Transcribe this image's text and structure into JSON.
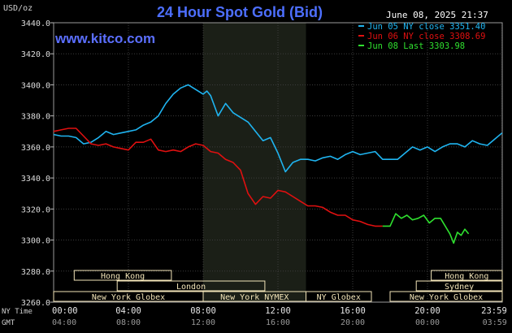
{
  "header": {
    "title": "24 Hour Spot Gold (Bid)",
    "unit": "USD/oz",
    "datetime": "June 08, 2025 21:37",
    "site": "www.kitco.com"
  },
  "colors": {
    "background": "#000000",
    "title": "#4d6fff",
    "jun05": "#1fb4f0",
    "jun06": "#e01010",
    "jun08": "#2fe02f",
    "market_label_bg": "#f2e4b8",
    "nymex_shade": "#1b1f17"
  },
  "chart_data": {
    "type": "line",
    "title": "24 Hour Spot Gold (Bid)",
    "ylabel": "USD/oz",
    "ylim": [
      3260,
      3440
    ],
    "yticks": [
      "3440.0",
      "3420.0",
      "3400.0",
      "3380.0",
      "3360.0",
      "3340.0",
      "3320.0",
      "3300.0",
      "3280.0",
      "3260.0"
    ],
    "xlim": [
      0,
      24
    ],
    "grid": true,
    "legend_position": "top-right",
    "x_rows": [
      {
        "label": "NY Time",
        "ticks": [
          "00:00",
          "04:00",
          "08:00",
          "12:00",
          "16:00",
          "20:00",
          "23:59"
        ]
      },
      {
        "label": "GMT",
        "ticks": [
          "04:00",
          "08:00",
          "12:00",
          "16:00",
          "20:00",
          "00:00",
          "03:59"
        ]
      }
    ],
    "series": [
      {
        "name": "Jun 05 NY close 3351.40",
        "key": "jun05",
        "x": [
          0,
          0.4,
          0.8,
          1.2,
          1.6,
          2.0,
          2.4,
          2.8,
          3.2,
          3.6,
          4.0,
          4.4,
          4.8,
          5.2,
          5.6,
          6.0,
          6.4,
          6.8,
          7.2,
          7.6,
          8.0,
          8.2,
          8.4,
          8.8,
          9.2,
          9.6,
          10.0,
          10.4,
          10.8,
          11.2,
          11.6,
          12.0,
          12.4,
          12.8,
          13.2,
          13.6,
          14.0,
          14.4,
          14.8,
          15.2,
          15.6,
          16.0,
          16.4,
          16.8,
          17.2,
          17.6,
          18.0,
          18.4,
          18.8,
          19.2,
          19.6,
          20.0,
          20.4,
          20.8,
          21.2,
          21.6,
          22.0,
          22.4,
          22.8,
          23.2,
          23.6,
          23.99
        ],
        "y": [
          3368,
          3367,
          3367,
          3366,
          3362,
          3363,
          3366,
          3370,
          3368,
          3369,
          3370,
          3371,
          3374,
          3376,
          3380,
          3388,
          3394,
          3398,
          3400,
          3397,
          3394,
          3396,
          3393,
          3380,
          3388,
          3382,
          3379,
          3376,
          3370,
          3364,
          3366,
          3356,
          3344,
          3350,
          3352,
          3352,
          3351,
          3353,
          3354,
          3352,
          3355,
          3357,
          3355,
          3356,
          3357,
          3352,
          3352,
          3352,
          3356,
          3360,
          3358,
          3360,
          3357,
          3360,
          3362,
          3362,
          3360,
          3364,
          3362,
          3361,
          3365,
          3369
        ]
      },
      {
        "name": "Jun 06 NY close 3308.69",
        "key": "jun06",
        "x": [
          0,
          0.4,
          0.8,
          1.2,
          1.6,
          2.0,
          2.4,
          2.8,
          3.2,
          3.6,
          4.0,
          4.4,
          4.8,
          5.2,
          5.6,
          6.0,
          6.4,
          6.8,
          7.2,
          7.6,
          8.0,
          8.4,
          8.8,
          9.2,
          9.6,
          10.0,
          10.4,
          10.8,
          11.2,
          11.6,
          12.0,
          12.4,
          12.8,
          13.2,
          13.6,
          14.0,
          14.4,
          14.8,
          15.2,
          15.6,
          16.0,
          16.4,
          16.8,
          17.2,
          17.6
        ],
        "y": [
          3370,
          3371,
          3372,
          3372,
          3367,
          3362,
          3361,
          3362,
          3360,
          3359,
          3358,
          3363,
          3363,
          3365,
          3358,
          3357,
          3358,
          3357,
          3360,
          3362,
          3361,
          3357,
          3356,
          3352,
          3350,
          3345,
          3330,
          3323,
          3328,
          3327,
          3332,
          3331,
          3328,
          3325,
          3322,
          3322,
          3321,
          3318,
          3316,
          3316,
          3313,
          3312,
          3310,
          3309,
          3309
        ]
      },
      {
        "name": "Jun 08 Last 3303.98",
        "key": "jun08",
        "x": [
          17.6,
          18.0,
          18.3,
          18.6,
          18.9,
          19.2,
          19.5,
          19.8,
          20.1,
          20.4,
          20.7,
          21.0,
          21.2,
          21.4,
          21.6,
          21.8,
          22.0,
          22.2
        ],
        "y": [
          3309,
          3309,
          3317,
          3314,
          3316,
          3313,
          3314,
          3316,
          3311,
          3314,
          3314,
          3308,
          3304,
          3298,
          3305,
          3303,
          3307,
          3304
        ]
      }
    ],
    "shaded_region": {
      "label": "New York NYMEX",
      "x_start": 8.0,
      "x_end": 13.5
    },
    "market_sessions": [
      {
        "label": "Hong Kong",
        "x_start": 1.1,
        "x_end": 6.3,
        "row": 0
      },
      {
        "label": "London",
        "x_start": 3.4,
        "x_end": 11.3,
        "row": 1
      },
      {
        "label": "New York Globex",
        "x_start": 0.0,
        "x_end": 8.0,
        "row": 2
      },
      {
        "label": "New York NYMEX",
        "x_start": 8.0,
        "x_end": 13.5,
        "row": 2
      },
      {
        "label": "NY Globex",
        "x_start": 13.5,
        "x_end": 17.0,
        "row": 2
      },
      {
        "label": "Hong Kong",
        "x_start": 20.2,
        "x_end": 24.0,
        "row": 0
      },
      {
        "label": "Sydney",
        "x_start": 19.4,
        "x_end": 24.0,
        "row": 1
      },
      {
        "label": "New York Globex",
        "x_start": 18.0,
        "x_end": 24.0,
        "row": 2
      }
    ]
  }
}
